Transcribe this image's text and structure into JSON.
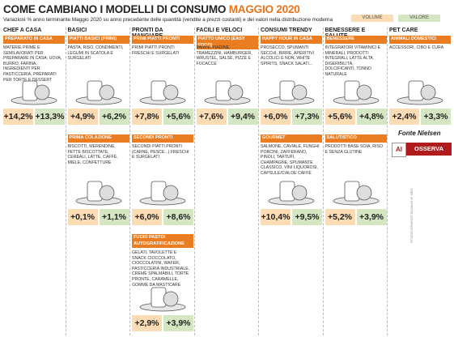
{
  "header": {
    "title": "COME CAMBIANO I MODELLI DI CONSUMO",
    "title_highlight": "MAGGIO 2020",
    "subtitle": "Variazioni % anno terminante Maggio 2020 su anno precedente delle quantità (vendite a prezzi costanti) e dei valori nella distribuzione moderna",
    "legend": {
      "volume": "VOLUME",
      "value": "VALORE"
    }
  },
  "columns": [
    {
      "title": "CHEF A CASA",
      "cards": [
        {
          "label": "PREPARATO IN CASA",
          "desc": "MATERIE PRIME E SEMILAVORATI PER PREPARARE IN CASA: UOVA, BURRO, FARINA, INGREDIENTI PER PASTICCERIA, PREPARATI PER TORTE E DESSERT",
          "volume": "+14,2%",
          "value": "+13,3%"
        }
      ]
    },
    {
      "title": "BASICI",
      "cards": [
        {
          "label": "PIATTI BASICI (PRIMI)",
          "desc": "PASTA, RISO, CONDIMENTI, LEGUMI IN SCATOLA E SURGELATI",
          "volume": "+4,9%",
          "value": "+6,2%"
        },
        {
          "label": "PRIMA COLAZIONE",
          "desc": "BISCOTTI, MERENDINE, FETTE BISCOTTATE, CEREALI, LATTE, CAFFÈ, MIELE, CONFETTURE",
          "volume": "+0,1%",
          "value": "+1,1%"
        }
      ]
    },
    {
      "title": "PRONTI DA MANGIARE",
      "cards": [
        {
          "label": "PRIMI PIATTI PRONTI",
          "desc": "PRIMI PIATTI PRONTI FRESCHI E SURGELATI",
          "volume": "+7,8%",
          "value": "+5,6%"
        },
        {
          "label": "SECONDI PRONTI",
          "desc": "SECONDI PIATTI PRONTI (CARNE, PESCE...) FRESCHI E SURGELATI",
          "volume": "+6,0%",
          "value": "+8,6%"
        },
        {
          "label": "FUORI PASTO/ AUTOGRATIFICAZIONE",
          "desc": "GELATI, TAVOLETTE E SNACK CIOCCOLATO, CIOCCOLATINI, WAFER, PASTICCERIA INDUSTRIALE, CREME SPALMABILI, TORTE PRONTE, CARAMELLE, GOMME DA MASTICARE",
          "volume": "+2,9%",
          "value": "+3,9%"
        }
      ]
    },
    {
      "title": "FACILI E VELOCI",
      "cards": [
        {
          "label": "PIATTO UNICO (EASY FOOD)",
          "desc": "PANINI, PIADINE, TRAMEZZINI, HAMBURGER, WRUSTEL, SALSE, PIZZE E FOCACCE",
          "volume": "+7,6%",
          "value": "+9,4%"
        }
      ]
    },
    {
      "title": "CONSUMI TRENDY",
      "cards": [
        {
          "label": "HAPPY HOUR IN CASA",
          "desc": "PROSECCO, SPUMANTI SECCHI, BIRRE, APERITIVI ALCOLICI E NON, WHITE SPIRITS, SNACK SALATI...",
          "volume": "+6,0%",
          "value": "+7,3%"
        },
        {
          "label": "GOURMET",
          "desc": "SALMONE, CAVIALE, FUNGHI PORCINI, ZAFFERANO, PINOLI, TARTUFI, CHAMPAGNE, SPUMANTE CLASSICO, VINI LIQUOROSI, CAPSULE/CIALDE CAFFÈ",
          "volume": "+10,4%",
          "value": "+9,5%"
        }
      ]
    },
    {
      "title": "BENESSERE E SALUTE",
      "cards": [
        {
          "label": "BENESSERE",
          "desc": "INTEGRATORI VITAMINICI E MINERALI, PRODOTTI INTEGRALI, LATTE ALTA DIGERIBILITÀ, DOLCIFICANTI, TONNO NATURALE",
          "volume": "+5,6%",
          "value": "+4,8%"
        },
        {
          "label": "SALUTISTICO",
          "desc": "PRODOTTI BASE SOIA, RISO E SENZA GLUTINE",
          "volume": "+5,2%",
          "value": "+3,9%"
        }
      ]
    },
    {
      "title": "PET CARE",
      "cards": [
        {
          "label": "ANIMALI DOMESTICI",
          "desc": "ACCESSORI, CIBO E CURA",
          "volume": "+2,4%",
          "value": "+3,3%"
        }
      ]
    }
  ],
  "footer": {
    "source": "Fonte Nielsen",
    "logo_mark": "AI",
    "logo": "OSSERVA ITALIA",
    "credit": "STUDIO GRAFICO SILVANO DI MEO"
  }
}
